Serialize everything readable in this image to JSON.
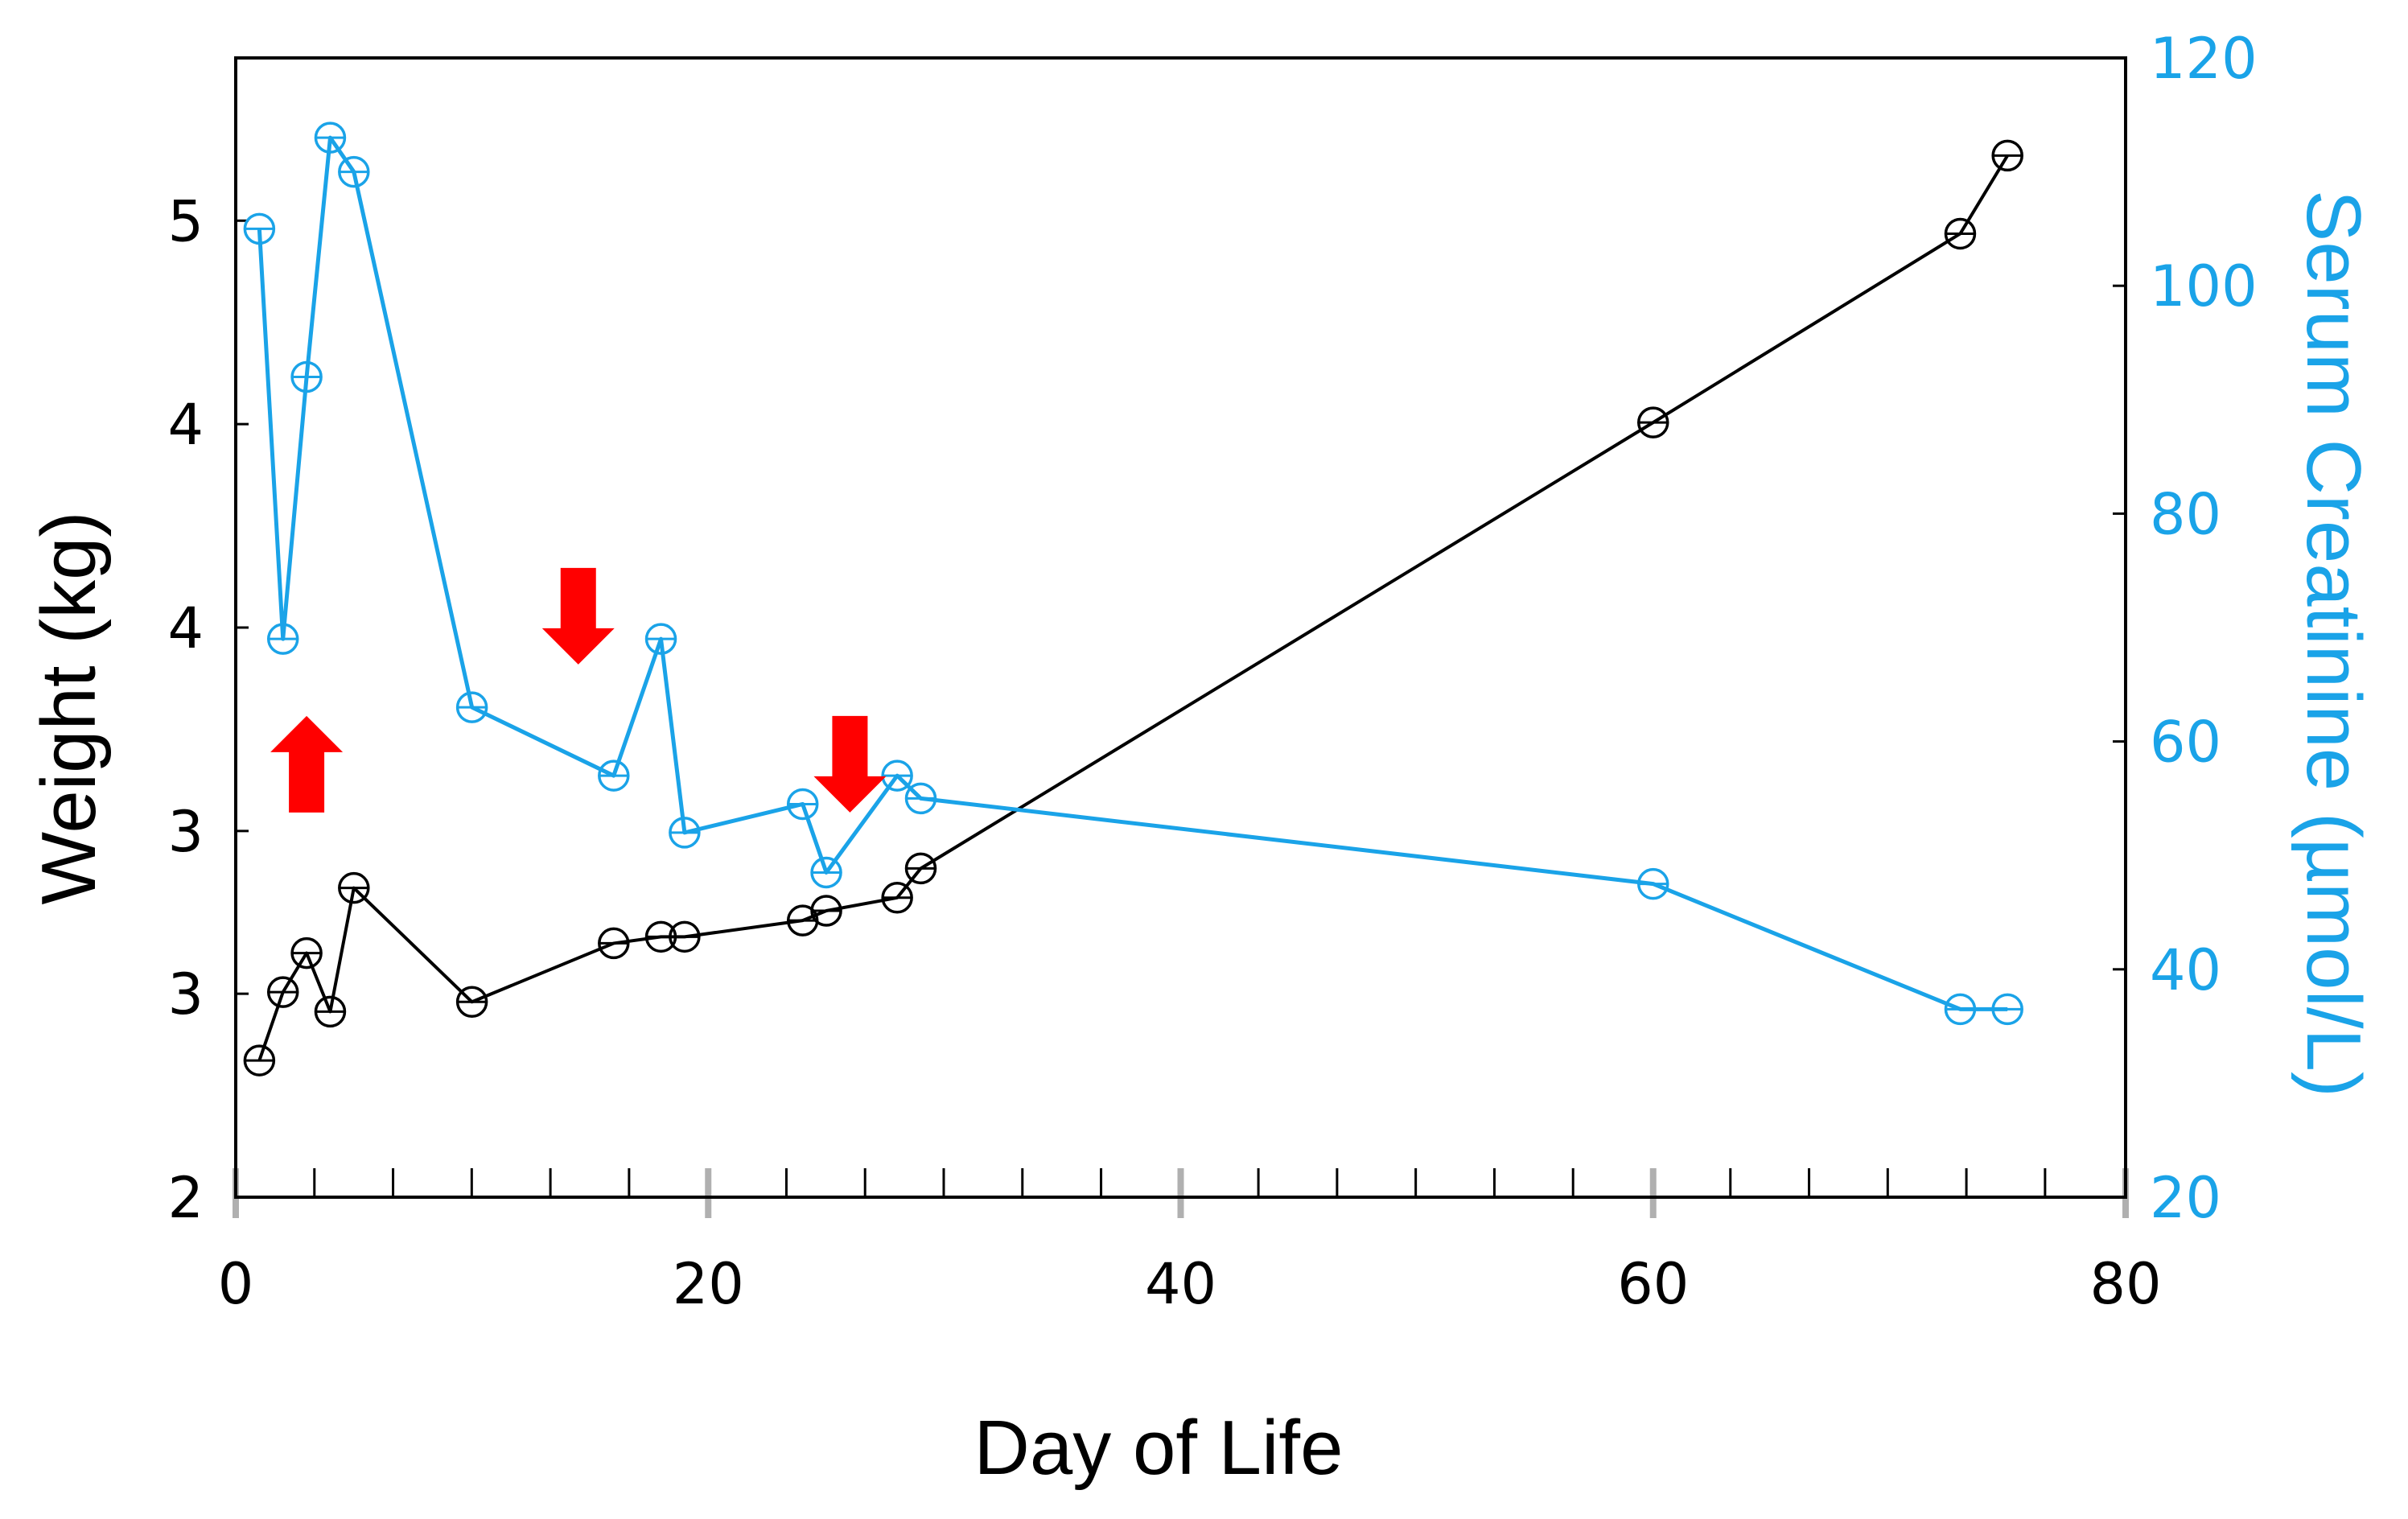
{
  "chart_data": {
    "type": "line",
    "title": "",
    "xlabel": "Day of Life",
    "ylabel": "Weight (kg)",
    "y2label": "Serum Creatinine (µmol/L)",
    "xlim": [
      0,
      80
    ],
    "x_ticks": [
      0,
      20,
      40,
      60,
      80
    ],
    "x_tick_labels": [
      "0",
      "20",
      "40",
      "60",
      "80"
    ],
    "x_minor_step": 3.33,
    "ylim": [
      2,
      5.5
    ],
    "y_ticks": [
      2,
      2.625,
      3.125,
      3.75,
      4.375,
      5
    ],
    "y_tick_labels": [
      "2",
      "3",
      "3",
      "4",
      "4",
      "5"
    ],
    "y2lim": [
      20,
      120
    ],
    "y2_ticks": [
      20,
      40,
      60,
      80,
      100,
      120
    ],
    "y2_tick_labels": [
      "20",
      "40",
      "60",
      "80",
      "100",
      "120"
    ],
    "grid": false,
    "colors": {
      "weight": "#000000",
      "creatinine": "#1aa3e8",
      "arrow": "#ff0000",
      "axis": "#000000",
      "major_tick": "#b0b0b0"
    },
    "series": [
      {
        "name": "Weight",
        "axis": "left",
        "x": [
          1,
          2,
          3,
          4,
          5,
          10,
          16,
          18,
          19,
          24,
          25,
          28,
          29,
          60,
          73,
          75
        ],
        "y": [
          2.42,
          2.63,
          2.75,
          2.57,
          2.95,
          2.6,
          2.78,
          2.8,
          2.8,
          2.85,
          2.88,
          2.92,
          3.01,
          4.38,
          4.96,
          5.2
        ]
      },
      {
        "name": "Serum Creatinine",
        "axis": "right",
        "x": [
          1,
          2,
          3,
          4,
          5,
          10,
          16,
          18,
          19,
          24,
          25,
          28,
          29,
          60,
          73,
          75
        ],
        "y": [
          105,
          69,
          92,
          113,
          110,
          63,
          57,
          69,
          52,
          54.5,
          48.5,
          57,
          55,
          47.5,
          36.5,
          36.5
        ]
      }
    ],
    "annotations": [
      {
        "type": "arrow",
        "direction": "up",
        "x": 3,
        "y": 58
      },
      {
        "type": "arrow",
        "direction": "down",
        "x": 14.5,
        "y": 71
      },
      {
        "type": "arrow",
        "direction": "down",
        "x": 26,
        "y": 58
      }
    ]
  }
}
